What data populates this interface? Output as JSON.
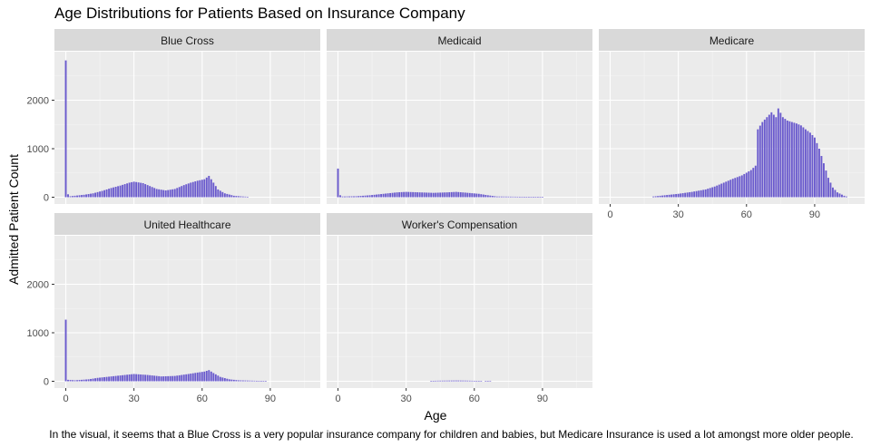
{
  "chart_data": {
    "type": "bar",
    "title": "Age Distributions for Patients Based on Insurance Company",
    "xlabel": "Age",
    "ylabel": "Admitted Patient Count",
    "caption": "In the visual, it seems that a Blue Cross is a very popular insurance company for children and babies, but Medicare Insurance is used a lot amongst more older people.",
    "x_ticks": [
      "0",
      "30",
      "60",
      "90"
    ],
    "x_tick_values": [
      0,
      30,
      60,
      90
    ],
    "y_ticks": [
      "0",
      "1000",
      "2000"
    ],
    "y_tick_values": [
      0,
      1000,
      2000
    ],
    "xlim": [
      -5,
      112
    ],
    "ylim": [
      -140,
      3000
    ],
    "bar_color": "#6A5ACD",
    "panel_background": "#EBEBEB",
    "strip_background": "#D9D9D9",
    "grid": true,
    "facets": [
      {
        "name": "Blue Cross",
        "anchors": [
          [
            0,
            2820
          ],
          [
            1,
            60
          ],
          [
            2,
            20
          ],
          [
            4,
            30
          ],
          [
            8,
            50
          ],
          [
            12,
            80
          ],
          [
            16,
            130
          ],
          [
            20,
            190
          ],
          [
            24,
            240
          ],
          [
            28,
            300
          ],
          [
            30,
            320
          ],
          [
            34,
            290
          ],
          [
            37,
            230
          ],
          [
            40,
            170
          ],
          [
            44,
            140
          ],
          [
            48,
            170
          ],
          [
            52,
            250
          ],
          [
            55,
            300
          ],
          [
            58,
            340
          ],
          [
            61,
            370
          ],
          [
            63,
            440
          ],
          [
            65,
            300
          ],
          [
            67,
            160
          ],
          [
            70,
            80
          ],
          [
            74,
            30
          ],
          [
            78,
            15
          ],
          [
            80,
            10
          ]
        ]
      },
      {
        "name": "Medicaid",
        "anchors": [
          [
            0,
            590
          ],
          [
            1,
            40
          ],
          [
            2,
            15
          ],
          [
            8,
            20
          ],
          [
            14,
            40
          ],
          [
            20,
            70
          ],
          [
            26,
            100
          ],
          [
            30,
            110
          ],
          [
            36,
            100
          ],
          [
            42,
            90
          ],
          [
            48,
            100
          ],
          [
            52,
            110
          ],
          [
            56,
            95
          ],
          [
            62,
            70
          ],
          [
            66,
            40
          ],
          [
            70,
            15
          ],
          [
            80,
            10
          ],
          [
            90,
            8
          ],
          [
            91,
            0
          ]
        ]
      },
      {
        "name": "Medicare",
        "anchors": [
          [
            18,
            0
          ],
          [
            19,
            15
          ],
          [
            24,
            40
          ],
          [
            30,
            70
          ],
          [
            36,
            110
          ],
          [
            42,
            160
          ],
          [
            46,
            220
          ],
          [
            50,
            300
          ],
          [
            54,
            380
          ],
          [
            58,
            450
          ],
          [
            62,
            560
          ],
          [
            64,
            650
          ],
          [
            65,
            1400
          ],
          [
            67,
            1550
          ],
          [
            69,
            1650
          ],
          [
            71,
            1750
          ],
          [
            73,
            1650
          ],
          [
            74,
            1830
          ],
          [
            76,
            1650
          ],
          [
            78,
            1580
          ],
          [
            80,
            1550
          ],
          [
            82,
            1520
          ],
          [
            84,
            1480
          ],
          [
            86,
            1400
          ],
          [
            88,
            1330
          ],
          [
            90,
            1230
          ],
          [
            92,
            1000
          ],
          [
            94,
            700
          ],
          [
            96,
            400
          ],
          [
            98,
            200
          ],
          [
            100,
            100
          ],
          [
            103,
            30
          ],
          [
            105,
            0
          ]
        ]
      },
      {
        "name": "United Healthcare",
        "anchors": [
          [
            0,
            1270
          ],
          [
            1,
            30
          ],
          [
            4,
            20
          ],
          [
            10,
            40
          ],
          [
            14,
            70
          ],
          [
            20,
            100
          ],
          [
            26,
            130
          ],
          [
            30,
            150
          ],
          [
            36,
            130
          ],
          [
            42,
            100
          ],
          [
            48,
            110
          ],
          [
            54,
            150
          ],
          [
            58,
            180
          ],
          [
            61,
            200
          ],
          [
            63,
            230
          ],
          [
            65,
            170
          ],
          [
            68,
            90
          ],
          [
            72,
            40
          ],
          [
            76,
            20
          ],
          [
            80,
            15
          ],
          [
            84,
            10
          ],
          [
            88,
            5
          ],
          [
            89,
            0
          ]
        ]
      },
      {
        "name": "Worker's Compensation",
        "anchors": [
          [
            40,
            0
          ],
          [
            41,
            8
          ],
          [
            44,
            12
          ],
          [
            48,
            14
          ],
          [
            52,
            16
          ],
          [
            56,
            14
          ],
          [
            60,
            10
          ],
          [
            63,
            6
          ],
          [
            64,
            0
          ],
          [
            67,
            10
          ],
          [
            68,
            0
          ]
        ]
      }
    ]
  }
}
